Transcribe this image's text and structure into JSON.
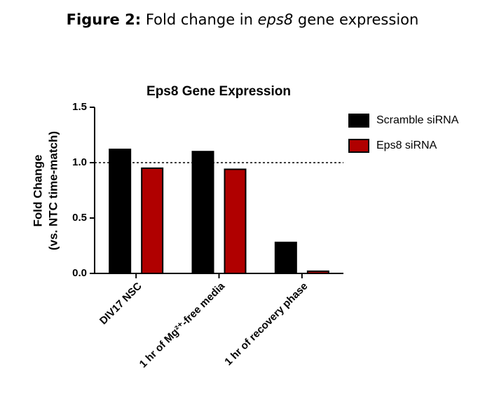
{
  "figure_caption": {
    "label": "Figure 2:",
    "text_before": "Fold change in",
    "gene": "eps8",
    "text_after": "gene expression"
  },
  "chart_data": {
    "type": "bar",
    "title": "Eps8 Gene Expression",
    "y_label": [
      "Fold Change",
      "(vs. NTC time-match)"
    ],
    "categories": [
      "DIV17 NSC",
      "1 hr of Mg²⁺-free media",
      "1 hr of recovery phase"
    ],
    "series": [
      {
        "name": "Scramble siRNA",
        "color": "#000000",
        "values": [
          1.12,
          1.1,
          0.28
        ]
      },
      {
        "name": "Eps8 siRNA",
        "color": "#b00000",
        "values": [
          0.95,
          0.94,
          0.02
        ]
      }
    ],
    "ylim": [
      0,
      1.5
    ],
    "yticks": [
      {
        "value": 0,
        "label": "0.0"
      },
      {
        "value": 0.5,
        "label": "0.5"
      },
      {
        "value": 1,
        "label": "1.0"
      },
      {
        "value": 1.5,
        "label": "1.5"
      }
    ],
    "reference_line": 1,
    "legend": "right"
  }
}
